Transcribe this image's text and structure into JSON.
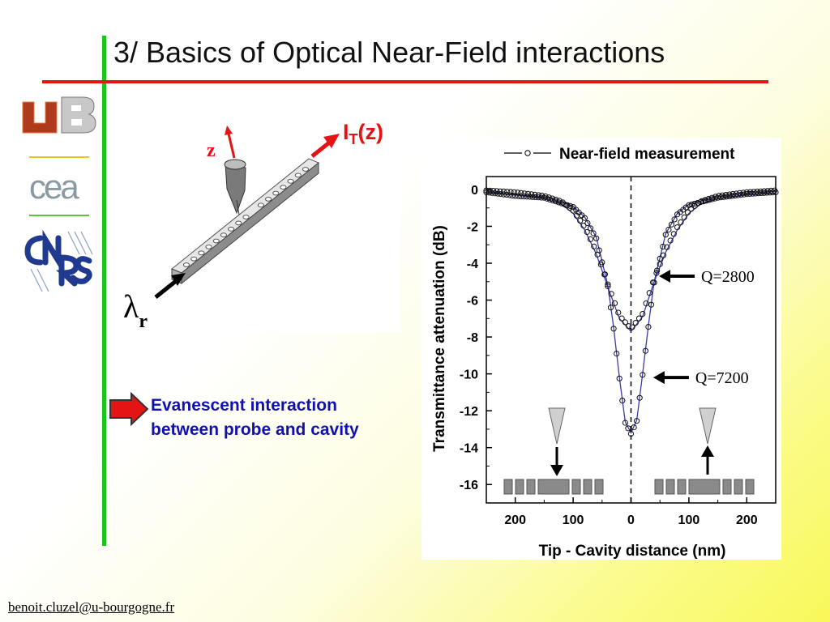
{
  "slide": {
    "title": "3/ Basics of Optical Near-Field interactions",
    "footer_email": "benoit.cluzel@u-bourgogne.fr",
    "logos": {
      "ub": "uB",
      "cea": "cea",
      "cnrs": "CNRS"
    },
    "colors": {
      "vertical_line": "#1ec41e",
      "title_underline": "#e41414",
      "callout_text": "#1010b0",
      "arrow_red": "#e41414"
    }
  },
  "probe_diagram": {
    "axis_label": "z",
    "output_label_main": "I",
    "output_label_sub": "T",
    "output_label_suffix": "(z)",
    "input_label_symbol": "λ",
    "input_label_sub": "r"
  },
  "callout": {
    "icon": "red-right-arrow-icon",
    "line1": "Evanescent interaction",
    "line2": "between probe and cavity"
  },
  "chart_data": {
    "type": "line",
    "legend": "Near-field measurement",
    "xlabel": "Tip - Cavity distance (nm)",
    "ylabel": "Transmittance attenuation (dB)",
    "xlim": [
      -250,
      250
    ],
    "ylim": [
      -17,
      0.7
    ],
    "x_axis_reversed_abs_labels": true,
    "x_ticks": [
      -200,
      -100,
      0,
      100,
      200
    ],
    "x_tick_labels": [
      "200",
      "100",
      "0",
      "100",
      "200"
    ],
    "y_ticks": [
      0,
      -2,
      -4,
      -6,
      -8,
      -10,
      -12,
      -14,
      -16
    ],
    "y_tick_labels": [
      "0",
      "-2",
      "-4",
      "-6",
      "-8",
      "-10",
      "-12",
      "-14",
      "-16"
    ],
    "series": [
      {
        "name": "Q=2800",
        "x": [
          -250,
          -200,
          -150,
          -120,
          -100,
          -80,
          -60,
          -40,
          -20,
          0,
          20,
          40,
          60,
          80,
          100,
          120,
          150,
          200,
          250
        ],
        "y": [
          -0.2,
          -0.3,
          -0.5,
          -0.8,
          -1.3,
          -2.2,
          -3.5,
          -5.3,
          -7.0,
          -7.7,
          -6.9,
          -5.0,
          -3.4,
          -2.2,
          -1.3,
          -0.8,
          -0.5,
          -0.3,
          -0.2
        ]
      },
      {
        "name": "Q=7200",
        "x": [
          -250,
          -200,
          -150,
          -100,
          -80,
          -60,
          -40,
          -30,
          -20,
          -10,
          0,
          10,
          20,
          30,
          40,
          60,
          80,
          100,
          150,
          200,
          250
        ],
        "y": [
          -0.1,
          -0.3,
          -0.4,
          -0.9,
          -1.5,
          -2.6,
          -5.2,
          -7.5,
          -10.2,
          -12.6,
          -13.2,
          -12.5,
          -10.0,
          -7.4,
          -5.0,
          -2.4,
          -1.3,
          -0.8,
          -0.4,
          -0.2,
          -0.1
        ]
      }
    ],
    "annotations": [
      "Q=2800",
      "Q=7200"
    ],
    "annotation_values": [
      {
        "label": "Q=2800",
        "x": 40,
        "y": -4.7
      },
      {
        "label": "Q=7200",
        "x": 30,
        "y": -10.2
      }
    ],
    "dashed_line_x": 0,
    "grid": false,
    "legend_placement": "top"
  }
}
